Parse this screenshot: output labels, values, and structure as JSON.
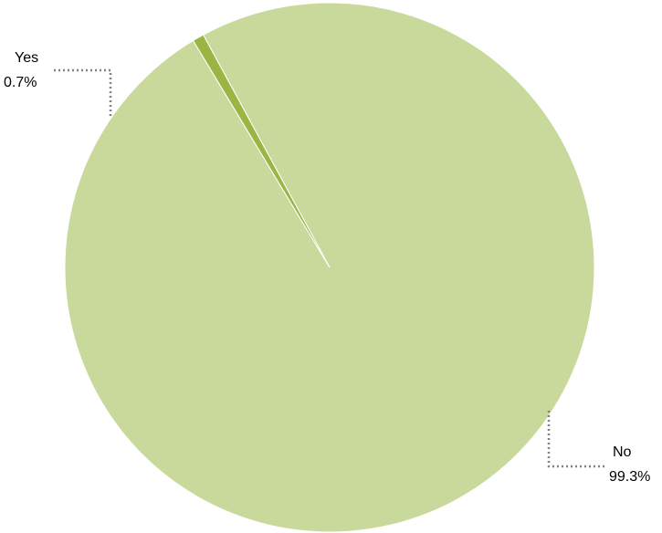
{
  "chart_data": {
    "type": "pie",
    "title": "",
    "legend": "none",
    "slices": [
      {
        "label": "No",
        "value": 99.3,
        "value_label": "99.3%",
        "color": "#c9d99b"
      },
      {
        "label": "Yes",
        "value": 0.7,
        "value_label": "0.7%",
        "color": "#9bb545"
      }
    ]
  },
  "style": {
    "leader_color": "#808080",
    "slice_border": "#ffffff"
  }
}
